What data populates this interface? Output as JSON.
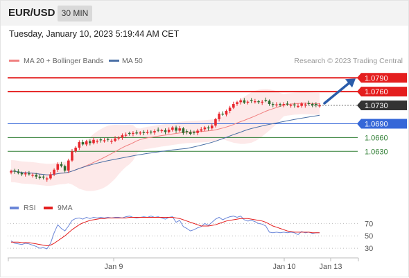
{
  "header": {
    "symbol": "EUR/USD",
    "timeframe": "30 MIN"
  },
  "datetime": "Tuesday, January 10, 2023 5:19:44 AM CET",
  "legend": {
    "ma_bb": "MA 20 + Bollinger Bands",
    "ma50": "MA 50",
    "credit": "Research © 2023 Trading Central"
  },
  "colors": {
    "resistance": "#e41e1e",
    "support": "#2e7d32",
    "pivot": "#3567d8",
    "current": "#333333",
    "ma20": "#f08080",
    "ma50": "#4a6fa5",
    "bull": "#e8282e",
    "bear": "#2f6b2f",
    "rsi": "#6a86d8",
    "rsi_ma": "#e41e1e",
    "arrow": "#2a5caa"
  },
  "chart_data": [
    {
      "type": "candlestick",
      "title": "EUR/USD",
      "timeframe": "30 MIN",
      "x_tick_labels": [
        "Jan 9",
        "Jan 10",
        "Jan 13"
      ],
      "ylim": [
        1.0555,
        1.081
      ],
      "levels": [
        {
          "label": "1.0790",
          "value": 1.079,
          "role": "resistance",
          "style": "solid"
        },
        {
          "label": "1.0760",
          "value": 1.076,
          "role": "resistance",
          "style": "solid"
        },
        {
          "label": "1.0730",
          "value": 1.073,
          "role": "current",
          "style": "dotted"
        },
        {
          "label": "1.0690",
          "value": 1.069,
          "role": "pivot",
          "style": "solid"
        },
        {
          "label": "1.0660",
          "value": 1.066,
          "role": "support",
          "style": "solid"
        },
        {
          "label": "1.0630",
          "value": 1.063,
          "role": "support",
          "style": "solid"
        }
      ],
      "closes": [
        1.0587,
        1.0586,
        1.0583,
        1.058,
        1.0582,
        1.058,
        1.0579,
        1.0575,
        1.0572,
        1.0573,
        1.0571,
        1.058,
        1.059,
        1.0602,
        1.0598,
        1.0588,
        1.061,
        1.063,
        1.0638,
        1.065,
        1.0645,
        1.0652,
        1.0648,
        1.0655,
        1.0653,
        1.0654,
        1.0654,
        1.0655,
        1.0653,
        1.0658,
        1.066,
        1.0665,
        1.0666,
        1.0668,
        1.067,
        1.0669,
        1.0671,
        1.067,
        1.0672,
        1.0671,
        1.0674,
        1.0675,
        1.0676,
        1.0672,
        1.0677,
        1.0682,
        1.0675,
        1.068,
        1.067,
        1.0672,
        1.0668,
        1.067,
        1.0675,
        1.0678,
        1.0682,
        1.068,
        1.0686,
        1.07,
        1.0712,
        1.071,
        1.0718,
        1.0725,
        1.0733,
        1.0737,
        1.0741,
        1.0736,
        1.0738,
        1.074,
        1.0739,
        1.0737,
        1.0738,
        1.074,
        1.0733,
        1.0731,
        1.0732,
        1.0731,
        1.0733,
        1.0732,
        1.0731,
        1.073,
        1.0729,
        1.0734,
        1.0732,
        1.0733,
        1.073,
        1.0731,
        1.073
      ],
      "series": [
        {
          "name": "MA 20 + Bollinger Bands",
          "role": "ma20"
        },
        {
          "name": "MA 50",
          "role": "ma50"
        }
      ],
      "forecast": {
        "from": 1.073,
        "to": 1.079,
        "direction": "up"
      }
    },
    {
      "type": "line",
      "yticks": [
        70,
        50,
        30
      ],
      "ylim": [
        20,
        85
      ],
      "series": [
        {
          "name": "RSI",
          "values": [
            42,
            38,
            37,
            36,
            38,
            37,
            35,
            33,
            30,
            31,
            29,
            38,
            55,
            68,
            62,
            58,
            66,
            75,
            78,
            79,
            77,
            80,
            78,
            80,
            79,
            80,
            79,
            80,
            79,
            80,
            80,
            79,
            81,
            82,
            80,
            79,
            80,
            81,
            80,
            82,
            80,
            81,
            79,
            77,
            80,
            81,
            72,
            75,
            65,
            62,
            58,
            60,
            63,
            65,
            70,
            67,
            72,
            77,
            80,
            76,
            79,
            81,
            82,
            80,
            82,
            76,
            74,
            75,
            73,
            70,
            69,
            66,
            56,
            55,
            56,
            55,
            56,
            55,
            56,
            55,
            52,
            57,
            55,
            56,
            54,
            55,
            55
          ]
        },
        {
          "name": "9MA",
          "values": [
            40,
            40,
            40,
            39,
            39,
            39,
            38,
            37,
            36,
            35,
            34,
            35,
            38,
            42,
            46,
            50,
            55,
            60,
            64,
            68,
            71,
            73,
            75,
            76,
            77,
            78,
            78,
            79,
            79,
            79,
            79,
            79,
            79,
            80,
            80,
            80,
            80,
            80,
            80,
            80,
            80,
            80,
            80,
            80,
            80,
            80,
            79,
            78,
            76,
            74,
            72,
            70,
            68,
            66,
            66,
            66,
            67,
            68,
            70,
            72,
            74,
            75,
            76,
            77,
            78,
            78,
            78,
            77,
            76,
            75,
            74,
            72,
            69,
            66,
            64,
            62,
            60,
            58,
            57,
            56,
            56,
            56,
            56,
            56,
            55,
            55,
            55
          ]
        }
      ]
    }
  ]
}
